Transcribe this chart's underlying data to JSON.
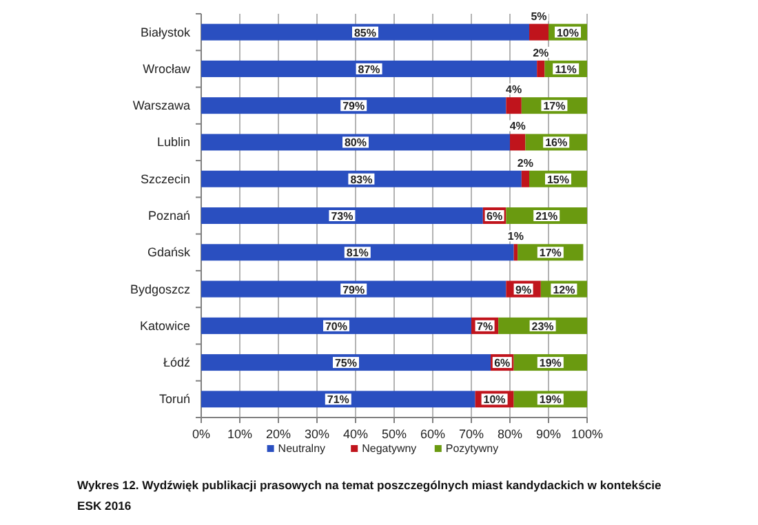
{
  "chart_data": {
    "type": "bar",
    "orientation": "horizontal",
    "stacked": true,
    "title": "Wykres 12. Wydźwięk publikacji prasowych na temat poszczególnych miast kandydackich w kontekście ESK 2016",
    "categories": [
      "Białystok",
      "Wrocław",
      "Warszawa",
      "Lublin",
      "Szczecin",
      "Poznań",
      "Gdańsk",
      "Bydgoszcz",
      "Katowice",
      "Łódź",
      "Toruń"
    ],
    "series": [
      {
        "name": "Neutralny",
        "color": "#2a4fc0",
        "values": [
          85,
          87,
          79,
          80,
          83,
          73,
          81,
          79,
          70,
          75,
          71
        ],
        "value_labels": [
          "85%",
          "87%",
          "79%",
          "80%",
          "83%",
          "73%",
          "81%",
          "79%",
          "70%",
          "75%",
          "71%"
        ]
      },
      {
        "name": "Negatywny",
        "color": "#c0141c",
        "values": [
          5,
          2,
          4,
          4,
          2,
          6,
          1,
          9,
          7,
          6,
          10
        ],
        "value_labels": [
          "5%",
          "2%",
          "4%",
          "4%",
          "2%",
          "6%",
          "1%",
          "9%",
          "7%",
          "6%",
          "10%"
        ]
      },
      {
        "name": "Pozytywny",
        "color": "#6a9a10",
        "values": [
          10,
          11,
          17,
          16,
          15,
          21,
          17,
          12,
          23,
          19,
          19
        ],
        "value_labels": [
          "10%",
          "11%",
          "17%",
          "16%",
          "15%",
          "21%",
          "17%",
          "12%",
          "23%",
          "19%",
          "19%"
        ]
      }
    ],
    "xlim": [
      0,
      100
    ],
    "xticks": [
      {
        "value": 0,
        "label": "0%"
      },
      {
        "value": 10,
        "label": "10%"
      },
      {
        "value": 20,
        "label": "20%"
      },
      {
        "value": 30,
        "label": "30%"
      },
      {
        "value": 40,
        "label": "40%"
      },
      {
        "value": 50,
        "label": "50%"
      },
      {
        "value": 60,
        "label": "60%"
      },
      {
        "value": 70,
        "label": "70%"
      },
      {
        "value": 80,
        "label": "80%"
      },
      {
        "value": 90,
        "label": "90%"
      },
      {
        "value": 100,
        "label": "100%"
      }
    ],
    "grid": "x",
    "legend": "bottom"
  }
}
